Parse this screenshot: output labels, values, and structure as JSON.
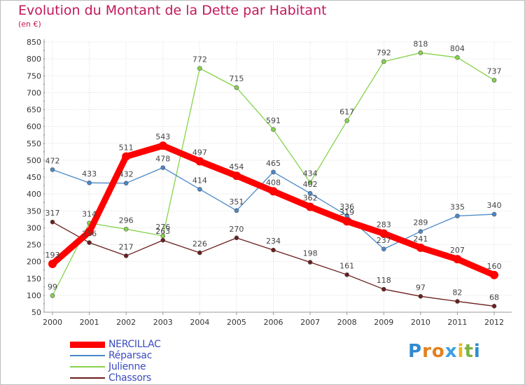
{
  "title": "Evolution du Montant de la Dette par Habitant",
  "subtitle": "(en €)",
  "brand": {
    "letters": [
      "P",
      "r",
      "o",
      "x",
      "i",
      "t",
      "i"
    ],
    "colors": [
      "#2e8bd0",
      "#e57f1e",
      "#e57f1e",
      "#3aa0e0",
      "#e9b71c",
      "#7cb342",
      "#2e8bd0"
    ]
  },
  "chart_data": {
    "type": "line",
    "x": [
      "2000",
      "2001",
      "2002",
      "2003",
      "2004",
      "2005",
      "2006",
      "2007",
      "2008",
      "2009",
      "2010",
      "2011",
      "2012"
    ],
    "ylim": [
      50,
      850
    ],
    "yticks": [
      50,
      100,
      150,
      200,
      250,
      300,
      350,
      400,
      450,
      500,
      550,
      600,
      650,
      700,
      750,
      800,
      850
    ],
    "grid": true,
    "legend_position": "bottom-left",
    "series": [
      {
        "name": "NERCILLAC",
        "color": "#ff0000",
        "values": [
          193,
          288,
          511,
          543,
          497,
          454,
          408,
          362,
          319,
          283,
          241,
          207,
          160
        ],
        "labels": [
          "193",
          "",
          "511",
          "543",
          "497",
          "454",
          "408",
          "362",
          "319",
          "283",
          "241",
          "207",
          "160"
        ]
      },
      {
        "name": "Réparsac",
        "color": "#4a88c8",
        "values": [
          472,
          433,
          432,
          478,
          414,
          351,
          465,
          402,
          336,
          237,
          289,
          335,
          340
        ],
        "labels": [
          "472",
          "433",
          "432",
          "478",
          "414",
          "351",
          "465",
          "402",
          "336",
          "237",
          "289",
          "335",
          "340"
        ]
      },
      {
        "name": "Julienne",
        "color": "#86d34b",
        "values": [
          99,
          314,
          296,
          276,
          772,
          715,
          591,
          434,
          617,
          792,
          818,
          804,
          737
        ],
        "labels": [
          "99",
          "314",
          "296",
          "276",
          "772",
          "715",
          "591",
          "434",
          "617",
          "792",
          "818",
          "804",
          "737"
        ]
      },
      {
        "name": "Chassors",
        "color": "#6b1d1d",
        "values": [
          317,
          256,
          217,
          263,
          226,
          270,
          234,
          198,
          161,
          118,
          97,
          82,
          68
        ],
        "labels": [
          "317",
          "256",
          "217",
          "263",
          "226",
          "270",
          "234",
          "198",
          "161",
          "118",
          "97",
          "82",
          "68"
        ]
      }
    ]
  }
}
